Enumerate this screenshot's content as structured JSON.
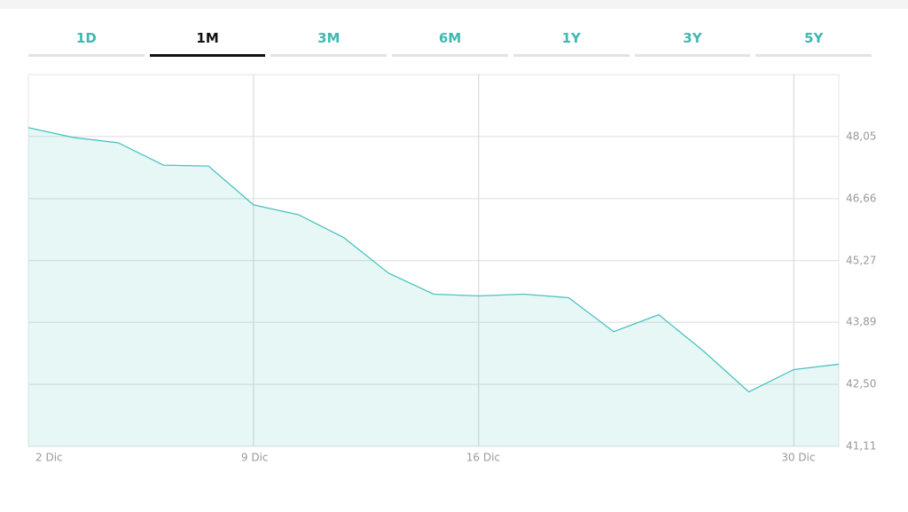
{
  "tabs": [
    "1D",
    "1M",
    "3M",
    "6M",
    "1Y",
    "3Y",
    "5Y"
  ],
  "active_tab": "1M",
  "chart_data": {
    "type": "area",
    "categories": [
      "2 Dic",
      null,
      null,
      null,
      null,
      "9 Dic",
      null,
      null,
      null,
      null,
      "16 Dic",
      null,
      null,
      null,
      null,
      null,
      null,
      "30 Dic",
      null
    ],
    "values": [
      48.25,
      48.03,
      47.91,
      47.41,
      47.39,
      46.52,
      46.3,
      45.79,
      44.99,
      44.52,
      44.48,
      44.52,
      44.44,
      43.68,
      44.06,
      43.24,
      42.33,
      42.83,
      42.95
    ],
    "color": "#4cc3c0",
    "ylim": [
      41.11,
      49.44
    ],
    "yticks": [
      {
        "value": 41.11,
        "label": "41,11"
      },
      {
        "value": 42.5,
        "label": "42,50"
      },
      {
        "value": 43.89,
        "label": "43,89"
      },
      {
        "value": 45.27,
        "label": "45,27"
      },
      {
        "value": 46.66,
        "label": "46,66"
      },
      {
        "value": 48.05,
        "label": "48,05"
      }
    ],
    "grid": true
  }
}
